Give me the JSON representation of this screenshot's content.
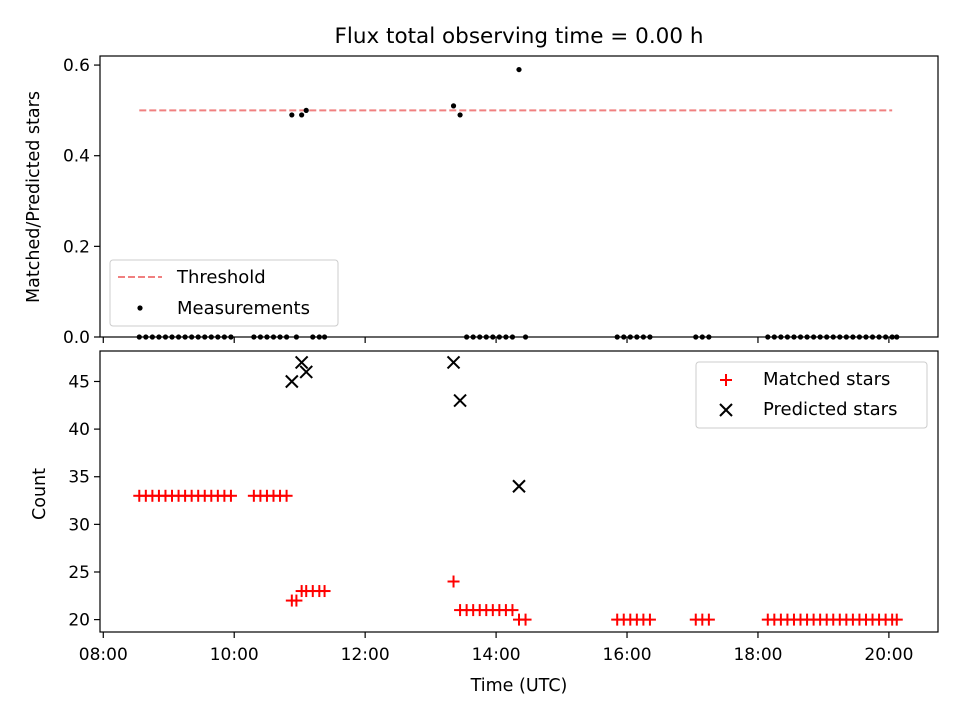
{
  "title": "Flux total observing time = 0.00 h",
  "chart_data": [
    {
      "type": "scatter",
      "ylabel": "Matched/Predicted stars",
      "xlabel": "",
      "xlim": [
        7.95,
        20.75
      ],
      "ylim": [
        0.0,
        0.62
      ],
      "xticks": [
        8,
        10,
        12,
        14,
        16,
        18,
        20
      ],
      "yticks": [
        {
          "value": 0.0,
          "label": "0.0"
        },
        {
          "value": 0.2,
          "label": "0.2"
        },
        {
          "value": 0.4,
          "label": "0.4"
        },
        {
          "value": 0.6,
          "label": "0.6"
        }
      ],
      "threshold": {
        "name": "Threshold",
        "value": 0.5,
        "x": [
          8.55,
          20.05
        ],
        "color": "#f08080"
      },
      "legend": {
        "placement": "lower-left",
        "entries": [
          "Threshold",
          "Measurements"
        ]
      },
      "series": [
        {
          "name": "Measurements",
          "color": "#000000",
          "points": [
            [
              8.55,
              0
            ],
            [
              8.65,
              0
            ],
            [
              8.75,
              0
            ],
            [
              8.85,
              0
            ],
            [
              8.95,
              0
            ],
            [
              9.05,
              0
            ],
            [
              9.15,
              0
            ],
            [
              9.25,
              0
            ],
            [
              9.35,
              0
            ],
            [
              9.45,
              0
            ],
            [
              9.55,
              0
            ],
            [
              9.65,
              0
            ],
            [
              9.75,
              0
            ],
            [
              9.85,
              0
            ],
            [
              9.95,
              0
            ],
            [
              10.3,
              0
            ],
            [
              10.4,
              0
            ],
            [
              10.5,
              0
            ],
            [
              10.6,
              0
            ],
            [
              10.7,
              0
            ],
            [
              10.8,
              0
            ],
            [
              10.88,
              0.49
            ],
            [
              10.95,
              0
            ],
            [
              11.03,
              0.49
            ],
            [
              11.1,
              0.5
            ],
            [
              11.2,
              0
            ],
            [
              11.3,
              0
            ],
            [
              11.38,
              0
            ],
            [
              13.35,
              0.51
            ],
            [
              13.45,
              0.49
            ],
            [
              13.55,
              0
            ],
            [
              13.65,
              0
            ],
            [
              13.75,
              0
            ],
            [
              13.85,
              0
            ],
            [
              13.95,
              0
            ],
            [
              14.05,
              0
            ],
            [
              14.15,
              0
            ],
            [
              14.25,
              0
            ],
            [
              14.35,
              0.59
            ],
            [
              14.45,
              0
            ],
            [
              15.85,
              0
            ],
            [
              15.95,
              0
            ],
            [
              16.05,
              0
            ],
            [
              16.15,
              0
            ],
            [
              16.25,
              0
            ],
            [
              16.35,
              0
            ],
            [
              17.05,
              0
            ],
            [
              17.15,
              0
            ],
            [
              17.25,
              0
            ],
            [
              18.15,
              0
            ],
            [
              18.25,
              0
            ],
            [
              18.35,
              0
            ],
            [
              18.45,
              0
            ],
            [
              18.55,
              0
            ],
            [
              18.65,
              0
            ],
            [
              18.75,
              0
            ],
            [
              18.85,
              0
            ],
            [
              18.95,
              0
            ],
            [
              19.05,
              0
            ],
            [
              19.15,
              0
            ],
            [
              19.25,
              0
            ],
            [
              19.35,
              0
            ],
            [
              19.45,
              0
            ],
            [
              19.55,
              0
            ],
            [
              19.65,
              0
            ],
            [
              19.75,
              0
            ],
            [
              19.85,
              0
            ],
            [
              19.95,
              0
            ],
            [
              20.05,
              0
            ],
            [
              20.12,
              0
            ]
          ]
        }
      ]
    },
    {
      "type": "scatter",
      "ylabel": "Count",
      "xlabel": "Time (UTC)",
      "xlim": [
        7.95,
        20.75
      ],
      "ylim": [
        18.7,
        48.2
      ],
      "xticks": [
        {
          "value": 8,
          "label": "08:00"
        },
        {
          "value": 10,
          "label": "10:00"
        },
        {
          "value": 12,
          "label": "12:00"
        },
        {
          "value": 14,
          "label": "14:00"
        },
        {
          "value": 16,
          "label": "16:00"
        },
        {
          "value": 18,
          "label": "18:00"
        },
        {
          "value": 20,
          "label": "20:00"
        }
      ],
      "yticks": [
        {
          "value": 20,
          "label": "20"
        },
        {
          "value": 25,
          "label": "25"
        },
        {
          "value": 30,
          "label": "30"
        },
        {
          "value": 35,
          "label": "35"
        },
        {
          "value": 40,
          "label": "40"
        },
        {
          "value": 45,
          "label": "45"
        }
      ],
      "legend": {
        "placement": "upper-right",
        "entries": [
          "Matched stars",
          "Predicted stars"
        ]
      },
      "series": [
        {
          "name": "Matched stars",
          "marker": "plus",
          "color": "#ff0000",
          "points": [
            [
              8.55,
              33
            ],
            [
              8.65,
              33
            ],
            [
              8.75,
              33
            ],
            [
              8.85,
              33
            ],
            [
              8.95,
              33
            ],
            [
              9.05,
              33
            ],
            [
              9.15,
              33
            ],
            [
              9.25,
              33
            ],
            [
              9.35,
              33
            ],
            [
              9.45,
              33
            ],
            [
              9.55,
              33
            ],
            [
              9.65,
              33
            ],
            [
              9.75,
              33
            ],
            [
              9.85,
              33
            ],
            [
              9.95,
              33
            ],
            [
              10.3,
              33
            ],
            [
              10.4,
              33
            ],
            [
              10.5,
              33
            ],
            [
              10.6,
              33
            ],
            [
              10.7,
              33
            ],
            [
              10.8,
              33
            ],
            [
              10.88,
              22
            ],
            [
              10.95,
              22
            ],
            [
              11.03,
              23
            ],
            [
              11.1,
              23
            ],
            [
              11.2,
              23
            ],
            [
              11.3,
              23
            ],
            [
              11.38,
              23
            ],
            [
              13.35,
              24
            ],
            [
              13.45,
              21
            ],
            [
              13.55,
              21
            ],
            [
              13.65,
              21
            ],
            [
              13.75,
              21
            ],
            [
              13.85,
              21
            ],
            [
              13.95,
              21
            ],
            [
              14.05,
              21
            ],
            [
              14.15,
              21
            ],
            [
              14.25,
              21
            ],
            [
              14.35,
              20
            ],
            [
              14.45,
              20
            ],
            [
              15.85,
              20
            ],
            [
              15.95,
              20
            ],
            [
              16.05,
              20
            ],
            [
              16.15,
              20
            ],
            [
              16.25,
              20
            ],
            [
              16.35,
              20
            ],
            [
              17.05,
              20
            ],
            [
              17.15,
              20
            ],
            [
              17.25,
              20
            ],
            [
              18.15,
              20
            ],
            [
              18.25,
              20
            ],
            [
              18.35,
              20
            ],
            [
              18.45,
              20
            ],
            [
              18.55,
              20
            ],
            [
              18.65,
              20
            ],
            [
              18.75,
              20
            ],
            [
              18.85,
              20
            ],
            [
              18.95,
              20
            ],
            [
              19.05,
              20
            ],
            [
              19.15,
              20
            ],
            [
              19.25,
              20
            ],
            [
              19.35,
              20
            ],
            [
              19.45,
              20
            ],
            [
              19.55,
              20
            ],
            [
              19.65,
              20
            ],
            [
              19.75,
              20
            ],
            [
              19.85,
              20
            ],
            [
              19.95,
              20
            ],
            [
              20.05,
              20
            ],
            [
              20.12,
              20
            ]
          ]
        },
        {
          "name": "Predicted stars",
          "marker": "x",
          "color": "#000000",
          "points": [
            [
              10.88,
              45
            ],
            [
              11.03,
              47
            ],
            [
              11.1,
              46
            ],
            [
              13.35,
              47
            ],
            [
              13.45,
              43
            ],
            [
              14.35,
              34
            ]
          ]
        }
      ]
    }
  ]
}
